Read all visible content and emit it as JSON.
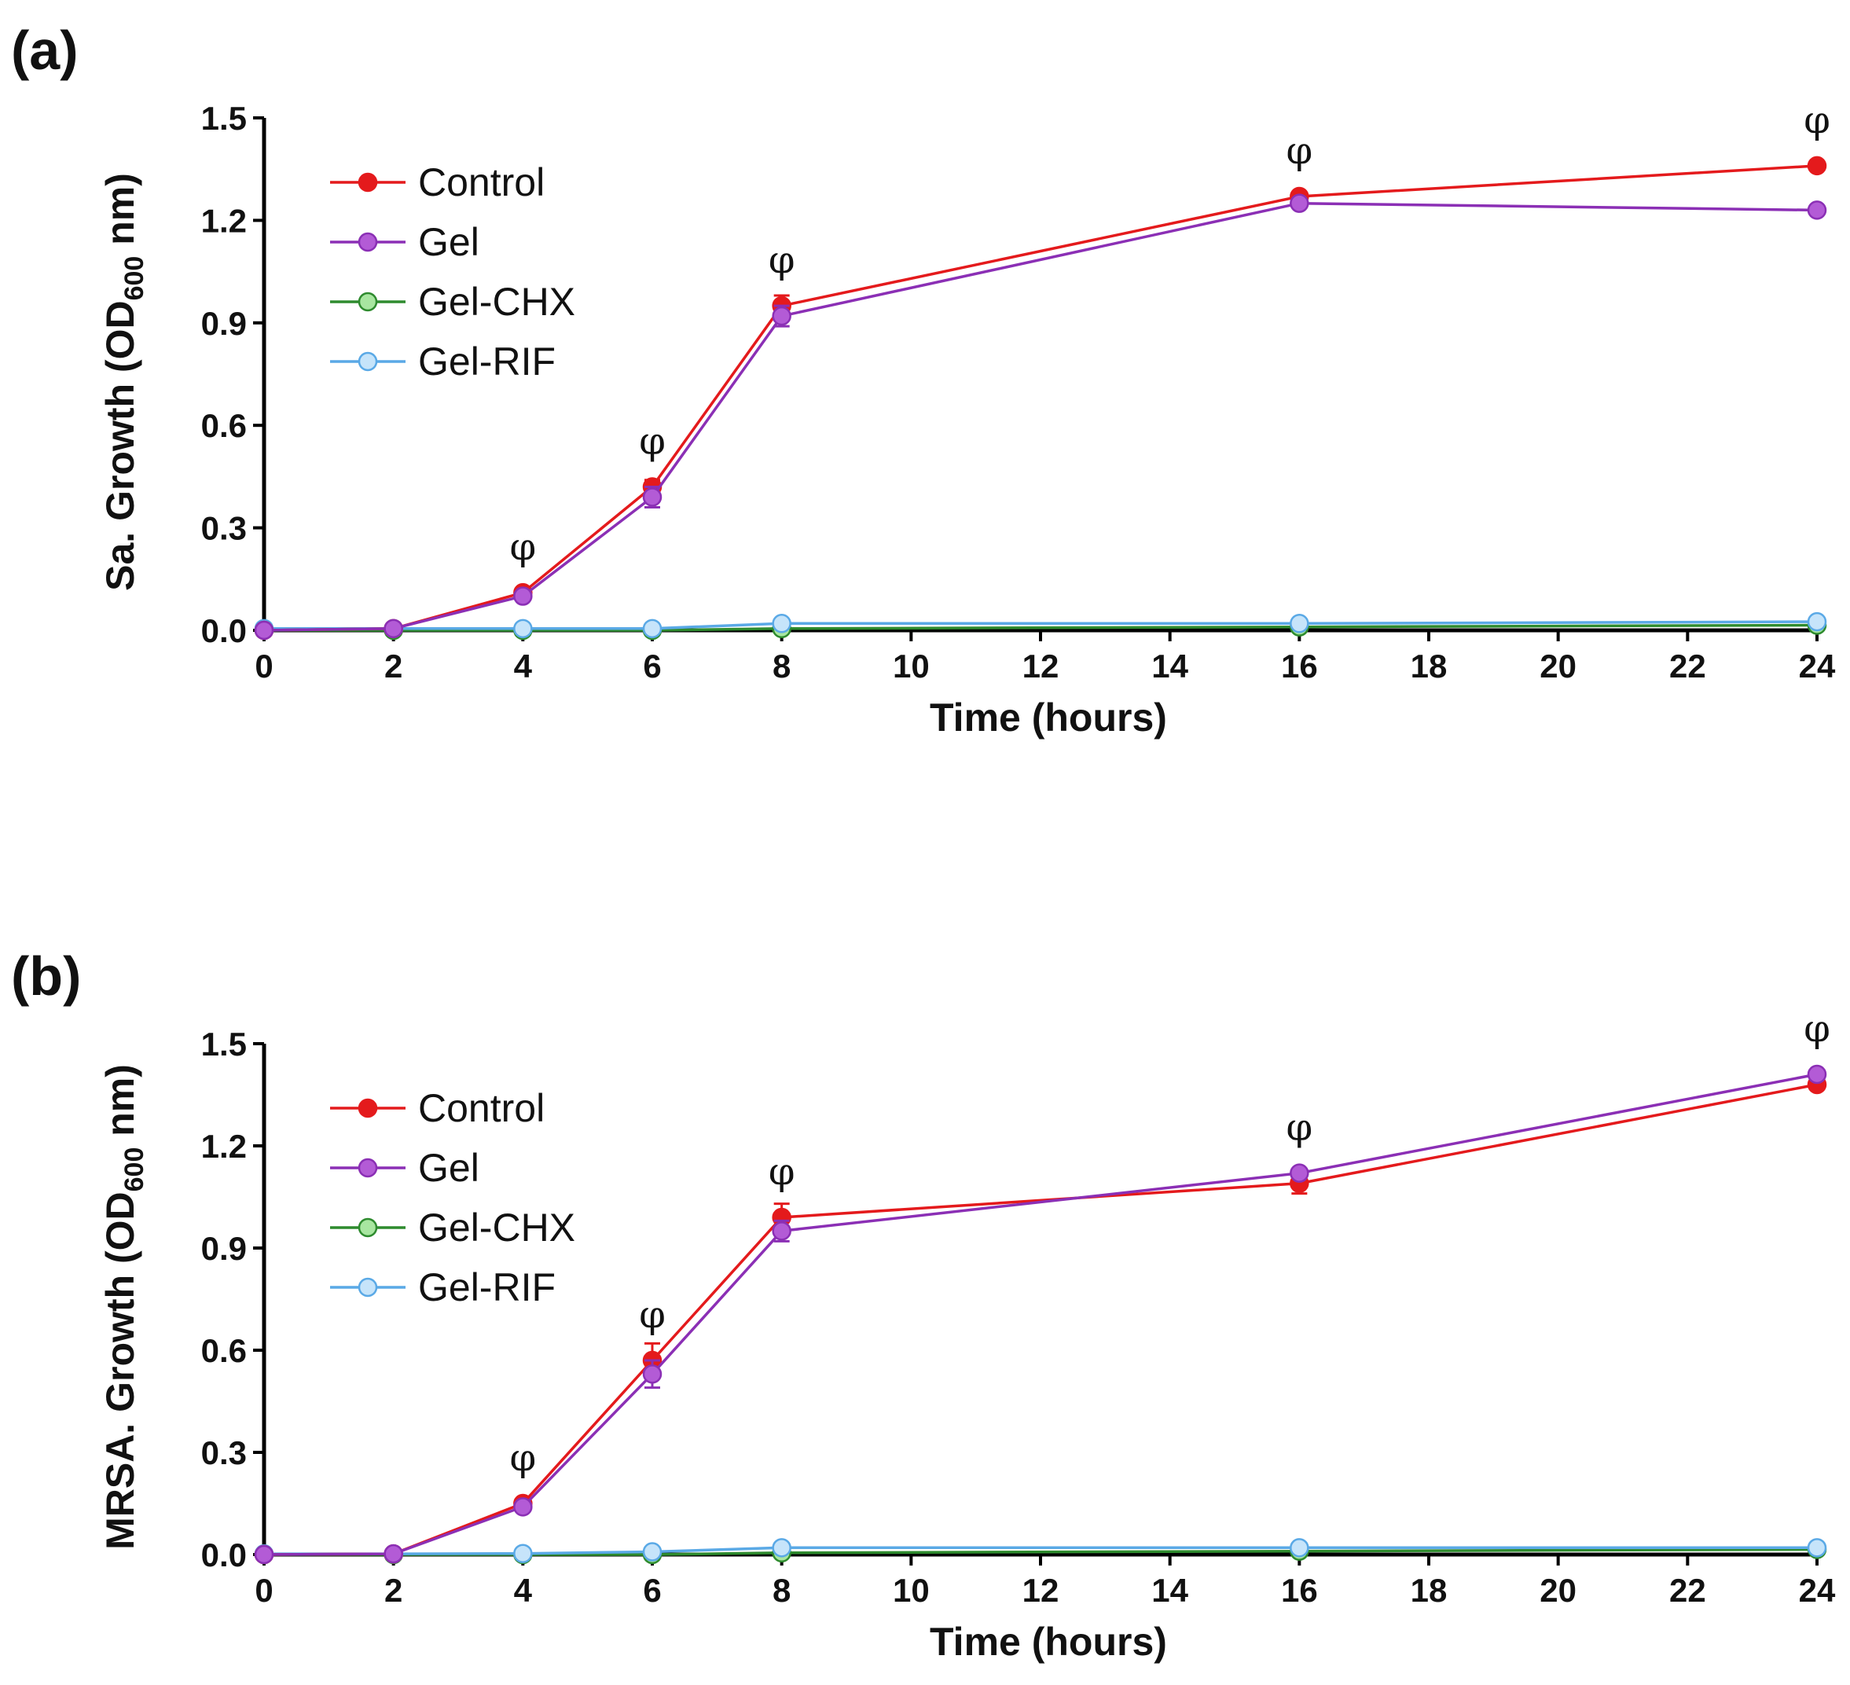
{
  "chart_data": [
    {
      "panel_label": "(a)",
      "type": "line",
      "xlabel": "Time (hours)",
      "ylabel_main": "Sa. Growth (OD",
      "ylabel_sub": "600",
      "ylabel_tail": " nm)",
      "xlim": [
        0,
        24
      ],
      "ylim": [
        0,
        1.5
      ],
      "x_ticks": [
        "0",
        "2",
        "4",
        "6",
        "8",
        "10",
        "12",
        "14",
        "16",
        "18",
        "20",
        "22",
        "24"
      ],
      "y_ticks": [
        "0.0",
        "0.3",
        "0.6",
        "0.9",
        "1.2",
        "1.5"
      ],
      "x": [
        0,
        2,
        4,
        6,
        8,
        16,
        24
      ],
      "legend_position": "top-left",
      "series": [
        {
          "name": "Control",
          "color": "#e41a1c",
          "fill": "#e41a1c",
          "values": [
            0.0,
            0.005,
            0.11,
            0.42,
            0.95,
            1.27,
            1.36
          ],
          "errors": [
            0,
            0,
            0.01,
            0.02,
            0.03,
            0.01,
            0.01
          ]
        },
        {
          "name": "Gel",
          "color": "#8b2fb5",
          "fill": "#b35bd6",
          "values": [
            0.0,
            0.005,
            0.1,
            0.39,
            0.92,
            1.25,
            1.23
          ],
          "errors": [
            0,
            0,
            0.01,
            0.03,
            0.03,
            0.01,
            0.01
          ]
        },
        {
          "name": "Gel-CHX",
          "color": "#2e8b2e",
          "fill": "#a8e6a0",
          "values": [
            0.0,
            0.0,
            0.0,
            0.0,
            0.005,
            0.01,
            0.015
          ],
          "errors": [
            0,
            0,
            0,
            0,
            0,
            0,
            0
          ]
        },
        {
          "name": "Gel-RIF",
          "color": "#5aa9e6",
          "fill": "#c6e4fa",
          "values": [
            0.005,
            0.005,
            0.005,
            0.005,
            0.02,
            0.02,
            0.025
          ],
          "errors": [
            0,
            0,
            0,
            0,
            0,
            0,
            0
          ]
        }
      ],
      "annotations": [
        {
          "x": 4,
          "y": 0.11,
          "text": "φ"
        },
        {
          "x": 6,
          "y": 0.42,
          "text": "φ"
        },
        {
          "x": 8,
          "y": 0.95,
          "text": "φ"
        },
        {
          "x": 16,
          "y": 1.27,
          "text": "φ"
        },
        {
          "x": 24,
          "y": 1.36,
          "text": "φ"
        }
      ]
    },
    {
      "panel_label": "(b)",
      "type": "line",
      "xlabel": "Time (hours)",
      "ylabel_main": "MRSA. Growth (OD",
      "ylabel_sub": "600",
      "ylabel_tail": " nm)",
      "xlim": [
        0,
        24
      ],
      "ylim": [
        0,
        1.5
      ],
      "x_ticks": [
        "0",
        "2",
        "4",
        "6",
        "8",
        "10",
        "12",
        "14",
        "16",
        "18",
        "20",
        "22",
        "24"
      ],
      "y_ticks": [
        "0.0",
        "0.3",
        "0.6",
        "0.9",
        "1.2",
        "1.5"
      ],
      "x": [
        0,
        2,
        4,
        6,
        8,
        16,
        24
      ],
      "legend_position": "top-left",
      "series": [
        {
          "name": "Control",
          "color": "#e41a1c",
          "fill": "#e41a1c",
          "values": [
            0.0,
            0.002,
            0.15,
            0.57,
            0.99,
            1.09,
            1.38
          ],
          "errors": [
            0,
            0,
            0.01,
            0.05,
            0.04,
            0.03,
            0.01
          ]
        },
        {
          "name": "Gel",
          "color": "#8b2fb5",
          "fill": "#b35bd6",
          "values": [
            0.0,
            0.002,
            0.14,
            0.53,
            0.95,
            1.12,
            1.41
          ],
          "errors": [
            0,
            0,
            0.01,
            0.04,
            0.03,
            0.01,
            0.01
          ]
        },
        {
          "name": "Gel-CHX",
          "color": "#2e8b2e",
          "fill": "#a8e6a0",
          "values": [
            0.0,
            0.0,
            0.0,
            0.0,
            0.005,
            0.01,
            0.015
          ],
          "errors": [
            0,
            0,
            0,
            0,
            0,
            0,
            0
          ]
        },
        {
          "name": "Gel-RIF",
          "color": "#5aa9e6",
          "fill": "#c6e4fa",
          "values": [
            0.002,
            0.002,
            0.003,
            0.008,
            0.02,
            0.02,
            0.02
          ],
          "errors": [
            0,
            0,
            0,
            0,
            0,
            0,
            0
          ]
        }
      ],
      "annotations": [
        {
          "x": 4,
          "y": 0.15,
          "text": "φ"
        },
        {
          "x": 6,
          "y": 0.57,
          "text": "φ"
        },
        {
          "x": 8,
          "y": 0.99,
          "text": "φ"
        },
        {
          "x": 16,
          "y": 1.12,
          "text": "φ"
        },
        {
          "x": 24,
          "y": 1.41,
          "text": "φ"
        }
      ]
    }
  ]
}
